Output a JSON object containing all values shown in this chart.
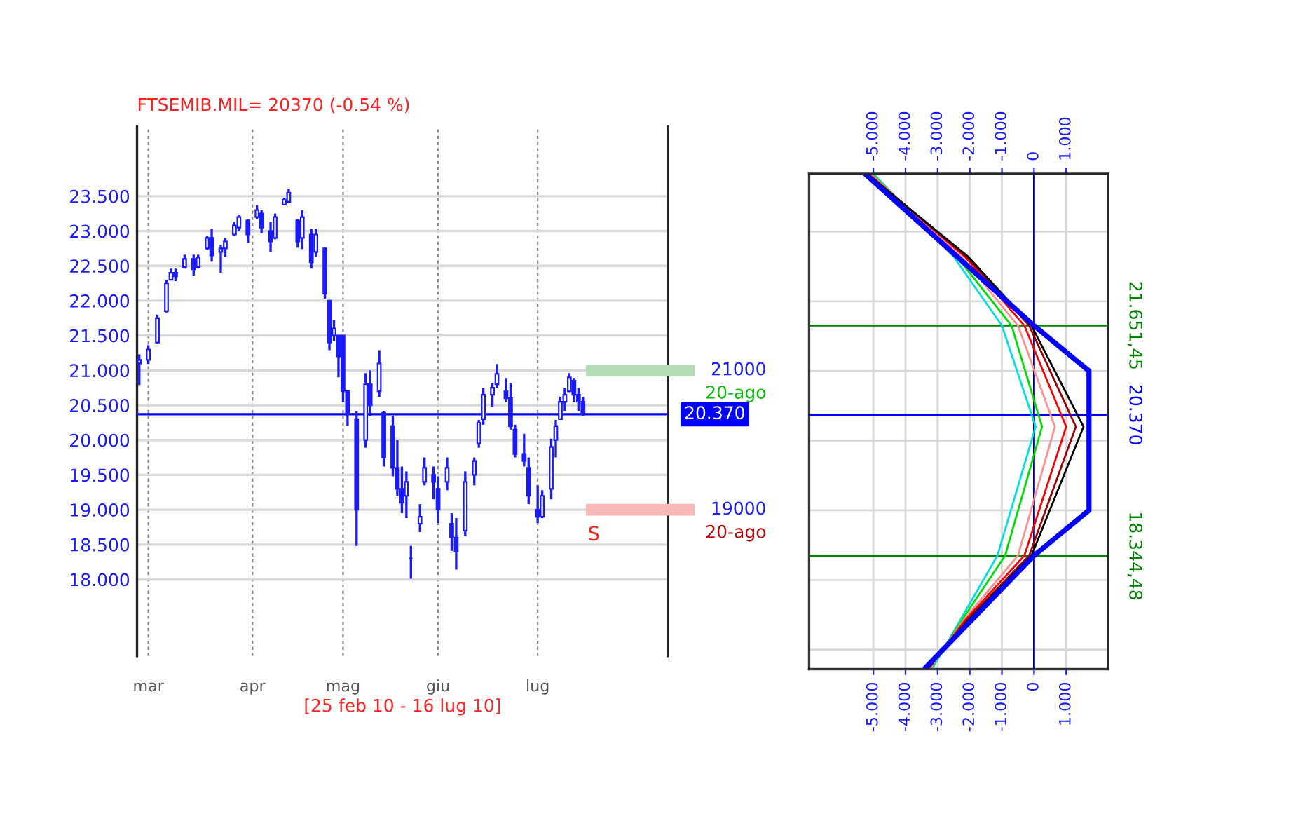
{
  "chart_data": [
    {
      "type": "candlestick",
      "title": "FTSEMIB.MIL= 20370 (-0.54 %)",
      "xlabel": "[25 feb 10 - 16 lug 10]",
      "categories": [
        null,
        null,
        "mar",
        null,
        null,
        null,
        null,
        null,
        null,
        null,
        null,
        null,
        null,
        null,
        null,
        null,
        null,
        null,
        null,
        null,
        null,
        null,
        null,
        null,
        null,
        "apr",
        null,
        null,
        null,
        null,
        null,
        null,
        null,
        null,
        null,
        null,
        null,
        null,
        null,
        null,
        null,
        null,
        null,
        null,
        null,
        "mag",
        null,
        null,
        null,
        null,
        null,
        null,
        null,
        null,
        null,
        null,
        null,
        null,
        null,
        null,
        null,
        null,
        null,
        null,
        null,
        null,
        "giu",
        null,
        null,
        null,
        null,
        null,
        null,
        null,
        null,
        null,
        null,
        null,
        null,
        null,
        null,
        null,
        null,
        null,
        null,
        null,
        null,
        null,
        "lug",
        null,
        null,
        null,
        null,
        null,
        null,
        null,
        null,
        null,
        null
      ],
      "ohlc": [
        [
          21100,
          21230,
          20790,
          21150
        ],
        null,
        [
          21150,
          21360,
          21090,
          21300
        ],
        null,
        [
          21400,
          21800,
          21390,
          21750
        ],
        null,
        [
          21850,
          22300,
          21830,
          22250
        ],
        [
          22300,
          22460,
          22300,
          22400
        ],
        [
          22400,
          22460,
          22280,
          22350
        ],
        null,
        [
          22480,
          22660,
          22460,
          22600
        ],
        null,
        [
          22600,
          22660,
          22360,
          22450
        ],
        [
          22480,
          22660,
          22460,
          22620
        ],
        null,
        [
          22750,
          22930,
          22730,
          22900
        ],
        [
          22900,
          23030,
          22560,
          22650
        ],
        null,
        [
          22700,
          22800,
          22400,
          22750
        ],
        [
          22750,
          22900,
          22630,
          22850
        ],
        null,
        [
          22950,
          23130,
          22930,
          23080
        ],
        [
          23050,
          23230,
          23000,
          23200
        ],
        null,
        [
          23150,
          23170,
          22830,
          22950
        ],
        null,
        [
          23200,
          23370,
          23170,
          23300
        ],
        [
          23250,
          23300,
          22970,
          23050
        ],
        null,
        [
          23000,
          23130,
          22700,
          22850
        ],
        [
          22900,
          23250,
          22880,
          23200
        ],
        null,
        [
          23380,
          23470,
          23370,
          23450
        ],
        [
          23420,
          23600,
          23400,
          23550
        ],
        null,
        [
          23150,
          23170,
          22760,
          22850
        ],
        [
          22900,
          23300,
          22740,
          23200
        ],
        null,
        [
          22950,
          23030,
          22460,
          22550
        ],
        [
          22700,
          23030,
          22630,
          22950
        ],
        null,
        [
          22750,
          22760,
          22030,
          22100
        ],
        [
          22000,
          22000,
          21290,
          21400
        ],
        [
          21500,
          21720,
          21420,
          21600
        ],
        [
          21500,
          21500,
          20900,
          21200
        ],
        [
          21500,
          21500,
          20550,
          20700
        ],
        [
          20700,
          20700,
          20200,
          20400
        ],
        null,
        [
          20300,
          20420,
          18480,
          19000
        ],
        null,
        [
          20000,
          20960,
          19890,
          20800
        ],
        [
          20800,
          21000,
          20350,
          20500
        ],
        null,
        [
          20700,
          21290,
          20620,
          21100
        ],
        [
          20400,
          20420,
          19620,
          19750
        ],
        null,
        [
          20200,
          20350,
          19480,
          19600
        ],
        [
          19600,
          20000,
          19200,
          19300
        ],
        [
          19300,
          19620,
          18950,
          19100
        ],
        [
          19200,
          19550,
          18880,
          19400
        ],
        [
          18300,
          18480,
          18010,
          18300
        ],
        null,
        [
          18800,
          19080,
          18680,
          18900
        ],
        [
          19400,
          19750,
          19350,
          19600
        ],
        null,
        [
          19500,
          19620,
          19150,
          19400
        ],
        [
          19300,
          19480,
          18810,
          19000
        ],
        null,
        [
          19400,
          19750,
          19280,
          19600
        ],
        [
          18800,
          18950,
          18410,
          18600
        ],
        [
          18600,
          18880,
          18140,
          18400
        ],
        null,
        [
          18700,
          19550,
          18620,
          19400
        ],
        null,
        [
          19500,
          19750,
          19350,
          19700
        ],
        [
          19950,
          20290,
          19890,
          20250
        ],
        [
          20300,
          20750,
          20220,
          20650
        ],
        null,
        [
          20650,
          20820,
          20480,
          20750
        ],
        [
          20800,
          21090,
          20750,
          20950
        ],
        null,
        [
          20700,
          20890,
          20550,
          20600
        ],
        [
          20600,
          20820,
          20150,
          20200
        ],
        [
          20150,
          20220,
          19750,
          19800
        ],
        null,
        [
          19800,
          20090,
          19620,
          19700
        ],
        [
          19600,
          19750,
          19080,
          19200
        ],
        null,
        [
          19000,
          19350,
          18810,
          18900
        ],
        [
          18900,
          19280,
          18880,
          19200
        ],
        null,
        [
          19300,
          20020,
          19150,
          19900
        ],
        [
          20000,
          20290,
          19750,
          20200
        ],
        [
          20300,
          20620,
          20290,
          20550
        ],
        [
          20550,
          20750,
          20420,
          20650
        ],
        [
          20700,
          20960,
          20690,
          20900
        ],
        [
          20850,
          20890,
          20550,
          20650
        ],
        [
          20650,
          20750,
          20420,
          20550
        ],
        [
          20550,
          20620,
          20350,
          20370
        ]
      ],
      "color": "#1a1aff",
      "ylim": [
        16900,
        24500
      ],
      "yticks": [
        {
          "value": 18000,
          "label": "18.000"
        },
        {
          "value": 18500,
          "label": "18.500"
        },
        {
          "value": 19000,
          "label": "19.000"
        },
        {
          "value": 19500,
          "label": "19.500"
        },
        {
          "value": 20000,
          "label": "20.000"
        },
        {
          "value": 20500,
          "label": "20.500"
        },
        {
          "value": 21000,
          "label": "21.000"
        },
        {
          "value": 21500,
          "label": "21.500"
        },
        {
          "value": 22000,
          "label": "22.000"
        },
        {
          "value": 22500,
          "label": "22.500"
        },
        {
          "value": 23000,
          "label": "23.000"
        },
        {
          "value": 23500,
          "label": "23.500"
        }
      ],
      "grid": true,
      "ref_lines": [
        {
          "axis": "y",
          "value": 20370,
          "label": "20.370",
          "color": "#0000ff",
          "line_style": "solid"
        },
        {
          "axis": "y",
          "value": 21000,
          "label": "21000",
          "color": "#b4dcb4"
        },
        {
          "axis": "y",
          "value": 19000,
          "label": "19000",
          "color": "#f8b8b8"
        }
      ],
      "annotations": [
        "20-ago",
        "20-ago",
        "S"
      ]
    },
    {
      "type": "line",
      "series": [
        {
          "color": "#00e0e0",
          "x": [
            -5000,
            -2500,
            -1000,
            50,
            -1140,
            -2300,
            -3150
          ],
          "values": [
            23830,
            22640,
            21650,
            20200,
            18350,
            17420,
            16740
          ]
        },
        {
          "color": "#00dd00",
          "x": [
            -5050,
            -2400,
            -700,
            250,
            -900,
            -2250,
            -3200
          ],
          "values": [
            23830,
            22640,
            21650,
            20200,
            18350,
            17420,
            16740
          ]
        },
        {
          "color": "#ff9090",
          "x": [
            -5100,
            -2250,
            -500,
            650,
            -500,
            -2200,
            -3220
          ],
          "values": [
            23830,
            22640,
            21650,
            20200,
            18350,
            17420,
            16740
          ]
        },
        {
          "color": "#ff0000",
          "x": [
            -5150,
            -2150,
            -300,
            1000,
            -300,
            -2150,
            -3250
          ],
          "values": [
            23830,
            22640,
            21650,
            20200,
            18350,
            17420,
            16740
          ]
        },
        {
          "color": "#a00000",
          "x": [
            -5180,
            -2100,
            -150,
            1300,
            -150,
            -2100,
            -3280
          ],
          "values": [
            23830,
            22640,
            21650,
            20200,
            18350,
            17420,
            16740
          ]
        },
        {
          "color": "#000000",
          "x": [
            -5200,
            -2050,
            -80,
            1540,
            -80,
            -2050,
            -3300
          ],
          "values": [
            23830,
            22640,
            21650,
            20200,
            18350,
            17420,
            16740
          ]
        },
        {
          "color": "#0000ff",
          "x": [
            -5260,
            0,
            1710,
            1710,
            0,
            -3380
          ],
          "values": [
            23830,
            21650,
            21000,
            19000,
            18350,
            16740
          ]
        }
      ],
      "xlim": [
        -7000,
        2300
      ],
      "xticks": [
        {
          "value": -5000,
          "label": "-5.000"
        },
        {
          "value": -4000,
          "label": "-4.000"
        },
        {
          "value": -3000,
          "label": "-3.000"
        },
        {
          "value": -2000,
          "label": "-2.000"
        },
        {
          "value": -1000,
          "label": "-1.000"
        },
        0,
        {
          "value": 1000,
          "label": "1.000"
        }
      ],
      "x2lim": [
        -7000,
        2300
      ],
      "x2ticks": [
        {
          "value": -5000,
          "label": "-5.000"
        },
        {
          "value": -4000,
          "label": "-4.000"
        },
        {
          "value": -3000,
          "label": "-3.000"
        },
        {
          "value": -2000,
          "label": "-2.000"
        },
        {
          "value": -1000,
          "label": "-1.000"
        },
        0,
        {
          "value": 1000,
          "label": "1.000"
        }
      ],
      "ylim": [
        16720,
        23830
      ],
      "yticks": [
        {
          "value": 17000,
          "label": null
        },
        {
          "value": 18000,
          "label": null
        },
        {
          "value": 19000,
          "label": null
        },
        {
          "value": 20000,
          "label": null
        },
        {
          "value": 21000,
          "label": null
        },
        {
          "value": 22000,
          "label": null
        },
        {
          "value": 23000,
          "label": null
        }
      ],
      "tick_labels": "x",
      "grid": true,
      "ref_lines": [
        {
          "axis": "x",
          "value": 0,
          "color": "#000080"
        },
        {
          "axis": "y",
          "value": 21651.45,
          "label": "21.651,45",
          "color": "#008000"
        },
        {
          "axis": "y",
          "value": 20370,
          "label": "20.370",
          "color": "#0000ff"
        },
        {
          "axis": "y",
          "value": 18344.48,
          "label": "18.344,48",
          "color": "#008000"
        }
      ]
    }
  ]
}
